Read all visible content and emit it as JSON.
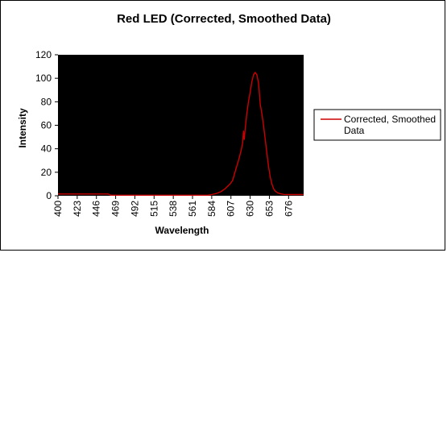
{
  "chart_data": {
    "type": "line",
    "title": "Red LED (Corrected,  Smoothed Data)",
    "xlabel": "Wavelength",
    "ylabel": "Intensity",
    "xlim": [
      400,
      694
    ],
    "ylim": [
      0,
      120
    ],
    "y_ticks": [
      0,
      20,
      40,
      60,
      80,
      100,
      120
    ],
    "x_ticks": [
      400,
      423,
      446,
      469,
      492,
      515,
      538,
      561,
      584,
      607,
      630,
      653,
      676
    ],
    "grid": false,
    "plot_background": "#000000",
    "legend_position": "right",
    "series": [
      {
        "name": "Corrected, Smoothed Data",
        "color": "#cc0000",
        "x": [
          400,
          460,
          463,
          580,
          584,
          590,
          595,
          600,
          603,
          606,
          609,
          611,
          613,
          616,
          619,
          621,
          622,
          623,
          624,
          626,
          628,
          630,
          632,
          634,
          636,
          638,
          640,
          641,
          642,
          644,
          646,
          648,
          650,
          652,
          654,
          656,
          658,
          660,
          663,
          666,
          670,
          675,
          680,
          694
        ],
        "y": [
          1.5,
          1.5,
          0.5,
          0.5,
          1,
          2,
          3.5,
          6,
          8,
          10,
          13,
          18,
          23,
          30,
          38,
          45,
          55,
          48,
          57,
          70,
          80,
          88,
          97,
          103,
          105,
          103,
          96,
          88,
          78,
          70,
          60,
          48,
          36,
          25,
          16,
          10,
          6,
          4,
          2.5,
          1.8,
          1.2,
          1,
          1,
          1
        ]
      }
    ]
  }
}
